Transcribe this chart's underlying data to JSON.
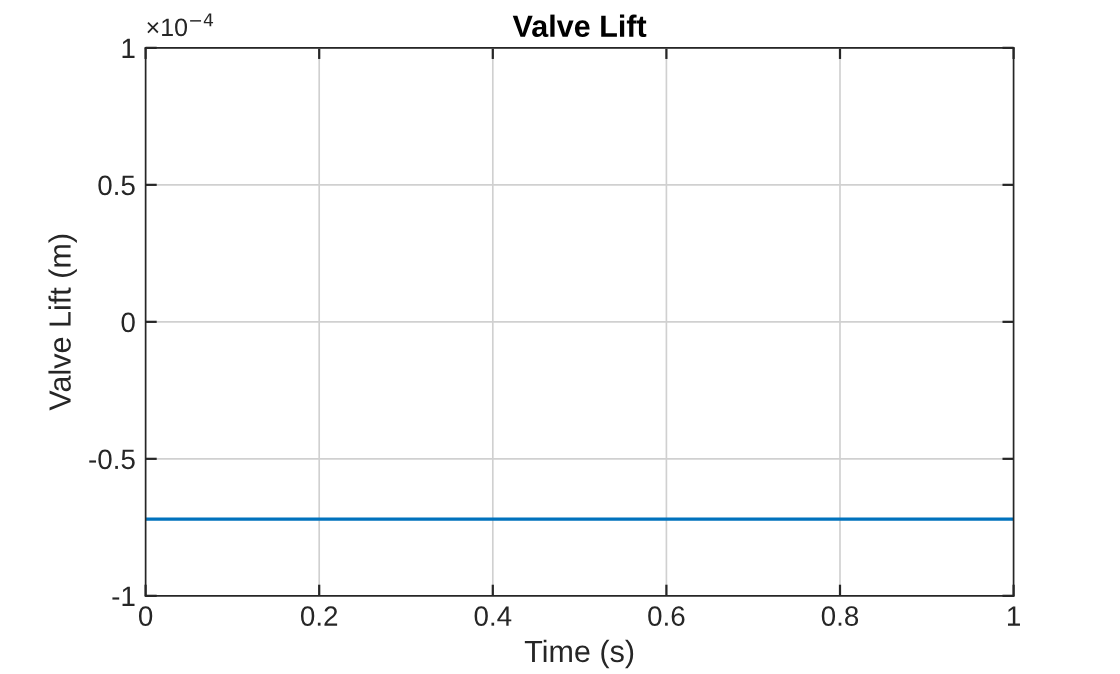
{
  "chart_data": {
    "type": "line",
    "title": "Valve Lift",
    "xlabel": "Time (s)",
    "ylabel": "Valve Lift (m)",
    "annotations": [
      "×10$^{−4}$"
    ],
    "x": [
      0,
      1
    ],
    "series": [
      {
        "color": "#0072bd",
        "values": [
          -0.72,
          -0.72
        ]
      }
    ],
    "xlim": [
      0,
      1
    ],
    "xticks": [
      0,
      0.2,
      0.4,
      0.6,
      0.8,
      1
    ],
    "ylim": [
      -1,
      1
    ],
    "yticks": [
      -1,
      -0.5,
      0,
      0.5,
      1
    ],
    "grid": true,
    "line_style": "solid",
    "marker": "none"
  }
}
